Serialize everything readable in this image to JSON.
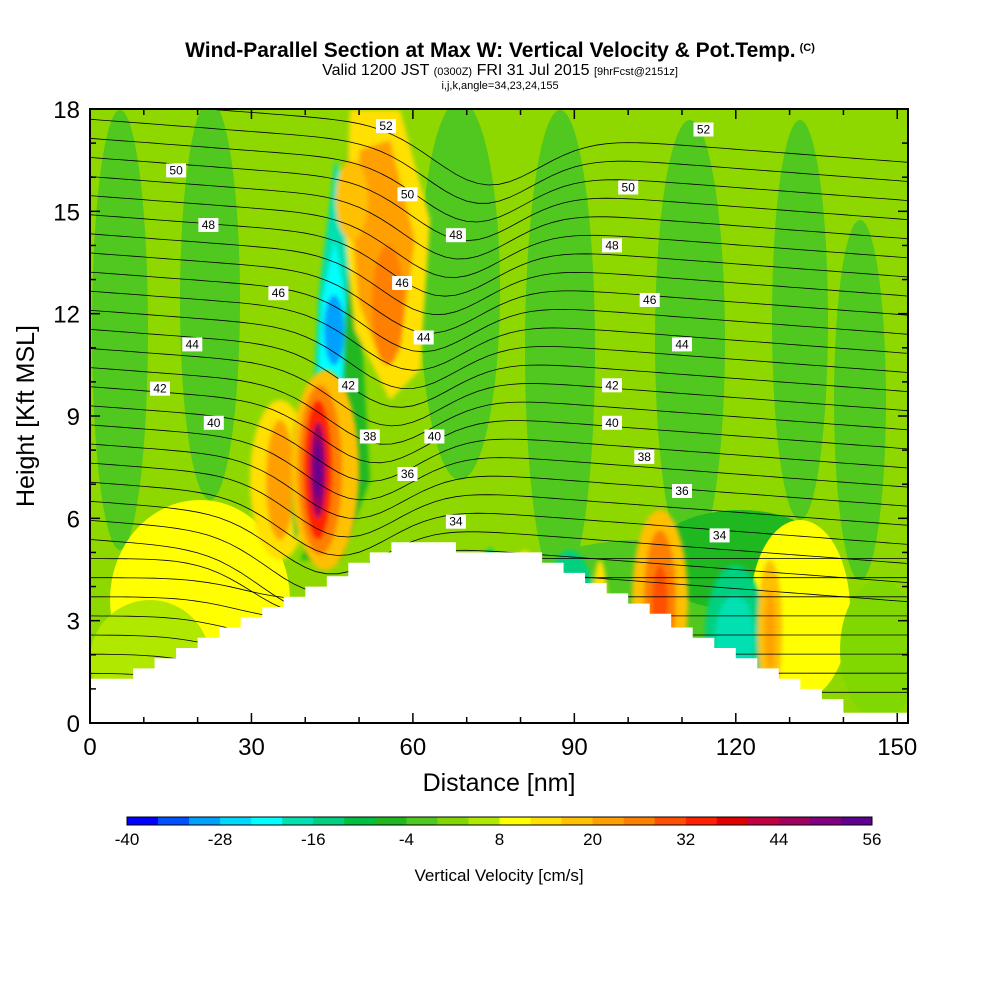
{
  "chart_data": {
    "type": "heatmap",
    "title": "Wind-Parallel Section at Max W: Vertical Velocity & Pot.Temp.",
    "title_tag": "(C)",
    "subtitle_main": "Valid 1200 JST",
    "subtitle_utc": "(0300Z)",
    "subtitle_date": "FRI 31 Jul 2015",
    "subtitle_fcst": "[9hrFcst@2151z]",
    "subtitle2": "i,j,k,angle=34,23,24,155",
    "xlabel": "Distance [nm]",
    "ylabel": "Height [Kft MSL]",
    "xlim": [
      0,
      152
    ],
    "ylim": [
      0,
      18
    ],
    "xticks": [
      0,
      30,
      60,
      90,
      120,
      150
    ],
    "yticks": [
      0,
      3,
      6,
      9,
      12,
      15,
      18
    ],
    "colorbar": {
      "label": "Vertical Velocity [cm/s]",
      "tick_labels": [
        -40,
        -28,
        -16,
        -4,
        8,
        20,
        32,
        44,
        56
      ],
      "colors": [
        "#0000ff",
        "#0050ff",
        "#00a0ff",
        "#00d8ff",
        "#00ffff",
        "#00e0b0",
        "#00d080",
        "#00c040",
        "#20b820",
        "#50c820",
        "#80d800",
        "#b0e800",
        "#ffff00",
        "#ffe000",
        "#ffc000",
        "#ffa000",
        "#ff8000",
        "#ff5000",
        "#ff2000",
        "#e00000",
        "#c00040",
        "#a00060",
        "#800080",
        "#600090"
      ]
    },
    "terrain_heights": [
      1.3,
      1.3,
      1.6,
      1.9,
      2.2,
      2.5,
      2.8,
      3.1,
      3.4,
      3.7,
      4.0,
      4.3,
      4.7,
      5.0,
      5.3,
      5.3,
      5.3,
      5.0,
      5.0,
      5.0,
      5.0,
      4.7,
      4.4,
      4.1,
      3.8,
      3.5,
      3.2,
      2.8,
      2.5,
      2.2,
      1.9,
      1.6,
      1.3,
      1.0,
      0.7,
      0.3,
      0.3,
      0.3
    ],
    "theta_contour_labels": [
      {
        "text": "52",
        "x": 55,
        "y": 17.5
      },
      {
        "text": "52",
        "x": 114,
        "y": 17.4
      },
      {
        "text": "50",
        "x": 16,
        "y": 16.2
      },
      {
        "text": "50",
        "x": 59,
        "y": 15.5
      },
      {
        "text": "50",
        "x": 100,
        "y": 15.7
      },
      {
        "text": "48",
        "x": 22,
        "y": 14.6
      },
      {
        "text": "48",
        "x": 68,
        "y": 14.3
      },
      {
        "text": "48",
        "x": 97,
        "y": 14.0
      },
      {
        "text": "46",
        "x": 35,
        "y": 12.6
      },
      {
        "text": "46",
        "x": 58,
        "y": 12.9
      },
      {
        "text": "46",
        "x": 104,
        "y": 12.4
      },
      {
        "text": "44",
        "x": 19,
        "y": 11.1
      },
      {
        "text": "44",
        "x": 62,
        "y": 11.3
      },
      {
        "text": "44",
        "x": 110,
        "y": 11.1
      },
      {
        "text": "42",
        "x": 13,
        "y": 9.8
      },
      {
        "text": "42",
        "x": 48,
        "y": 9.9
      },
      {
        "text": "42",
        "x": 97,
        "y": 9.9
      },
      {
        "text": "40",
        "x": 23,
        "y": 8.8
      },
      {
        "text": "40",
        "x": 64,
        "y": 8.4
      },
      {
        "text": "40",
        "x": 97,
        "y": 8.8
      },
      {
        "text": "38",
        "x": 52,
        "y": 8.4
      },
      {
        "text": "38",
        "x": 103,
        "y": 7.8
      },
      {
        "text": "36",
        "x": 59,
        "y": 7.3
      },
      {
        "text": "36",
        "x": 110,
        "y": 6.8
      },
      {
        "text": "34",
        "x": 68,
        "y": 5.9
      },
      {
        "text": "34",
        "x": 117,
        "y": 5.5
      }
    ]
  }
}
